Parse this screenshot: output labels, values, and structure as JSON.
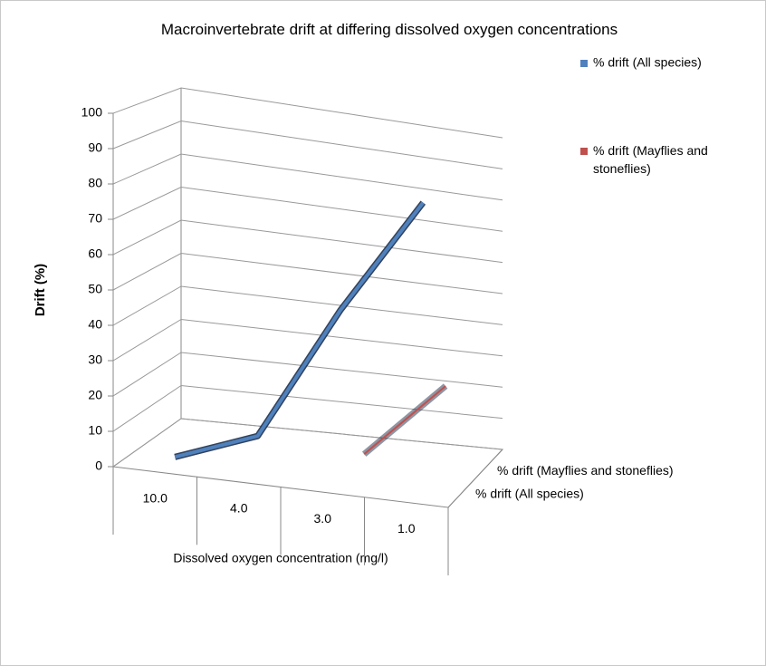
{
  "chart_data": {
    "type": "line",
    "title": "Macroinvertebrate drift at differing dissolved oxygen concentrations",
    "x_label": "Dissolved oxygen concentration (mg/l)",
    "y_label": "Drift (%)",
    "categories": [
      "10.0",
      "4.0",
      "3.0",
      "1.0"
    ],
    "series": [
      {
        "name": "% drift (All species)",
        "color": "#4f81bd",
        "values": [
          0,
          9,
          50,
          87
        ]
      },
      {
        "name": "% drift (Mayflies and stoneflies)",
        "color": "#c0504d",
        "values": [
          null,
          null,
          0,
          24
        ]
      }
    ],
    "ylim": [
      0,
      100
    ],
    "yticks": [
      0,
      10,
      20,
      30,
      40,
      50,
      60,
      70,
      80,
      90,
      100
    ],
    "grid": true,
    "legend": "right"
  }
}
